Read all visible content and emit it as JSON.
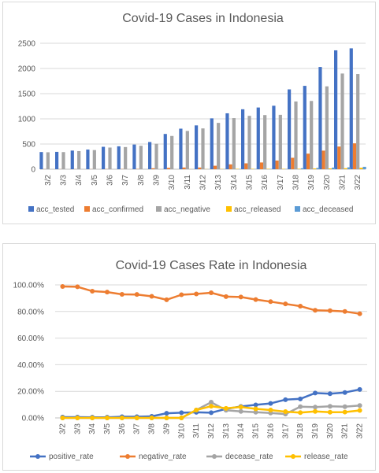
{
  "chart_data": [
    {
      "type": "bar",
      "title": "Covid-19 Cases in Indonesia",
      "xlabel": "",
      "ylabel": "",
      "ylim": [
        0,
        2500
      ],
      "yticks": [
        "0",
        "500",
        "1000",
        "1500",
        "2000",
        "2500"
      ],
      "grid": true,
      "legend_position": "bottom",
      "categories": [
        "3/2",
        "3/3",
        "3/4",
        "3/5",
        "3/6",
        "3/7",
        "3/8",
        "3/9",
        "3/10",
        "3/11",
        "3/12",
        "3/13",
        "3/14",
        "3/15",
        "3/16",
        "3/17",
        "3/18",
        "3/19",
        "3/20",
        "3/21",
        "3/22"
      ],
      "series": [
        {
          "name": "acc_tested",
          "color": "#4472c4",
          "values": [
            341,
            345,
            370,
            390,
            445,
            455,
            490,
            540,
            700,
            805,
            870,
            1010,
            1110,
            1190,
            1225,
            1260,
            1585,
            1655,
            2030,
            2360,
            2400
          ]
        },
        {
          "name": "acc_confirmed",
          "color": "#ed7d31",
          "values": [
            2,
            2,
            2,
            2,
            4,
            4,
            6,
            19,
            27,
            34,
            34,
            69,
            96,
            117,
            134,
            172,
            227,
            309,
            369,
            450,
            514
          ]
        },
        {
          "name": "acc_negative",
          "color": "#a5a5a5",
          "values": [
            337,
            340,
            360,
            380,
            430,
            440,
            465,
            505,
            660,
            760,
            810,
            920,
            1015,
            1060,
            1075,
            1080,
            1345,
            1355,
            1645,
            1900,
            1890
          ]
        },
        {
          "name": "acc_released",
          "color": "#ffc000",
          "values": [
            0,
            0,
            0,
            0,
            0,
            0,
            0,
            0,
            0,
            2,
            3,
            5,
            8,
            8,
            8,
            8,
            9,
            15,
            16,
            20,
            29
          ]
        },
        {
          "name": "acc_deceased",
          "color": "#5b9bd5",
          "values": [
            0,
            0,
            0,
            0,
            0,
            0,
            0,
            0,
            0,
            1,
            1,
            4,
            5,
            5,
            5,
            5,
            19,
            25,
            32,
            38,
            48
          ]
        }
      ]
    },
    {
      "type": "line",
      "title": "Covid-19 Cases Rate in Indonesia",
      "xlabel": "",
      "ylabel": "",
      "ylim": [
        0,
        100
      ],
      "yticks": [
        "0.00%",
        "20.00%",
        "40.00%",
        "60.00%",
        "80.00%",
        "100.00%"
      ],
      "grid": true,
      "legend_position": "bottom",
      "categories": [
        "3/2",
        "3/3",
        "3/4",
        "3/5",
        "3/6",
        "3/7",
        "3/8",
        "3/9",
        "3/10",
        "3/11",
        "3/12",
        "3/13",
        "3/14",
        "3/15",
        "3/16",
        "3/17",
        "3/18",
        "3/19",
        "3/20",
        "3/21",
        "3/22"
      ],
      "series": [
        {
          "name": "positive_rate",
          "color": "#4472c4",
          "values": [
            0.6,
            0.6,
            0.5,
            0.5,
            0.9,
            0.9,
            1.2,
            3.5,
            3.9,
            4.2,
            3.9,
            6.8,
            8.6,
            9.8,
            10.9,
            13.7,
            14.3,
            18.7,
            18.2,
            19.1,
            21.4
          ]
        },
        {
          "name": "negative_rate",
          "color": "#ed7d31",
          "values": [
            98.8,
            98.6,
            95.3,
            94.6,
            92.9,
            92.8,
            91.4,
            88.8,
            92.6,
            93.2,
            94.1,
            91.2,
            90.9,
            89.0,
            87.4,
            85.7,
            84.0,
            80.9,
            80.6,
            80.0,
            78.3
          ]
        },
        {
          "name": "decease_rate",
          "color": "#a5a5a5",
          "values": [
            0,
            0,
            0,
            0,
            0,
            0,
            0,
            0,
            0,
            5.9,
            11.8,
            5.8,
            4.9,
            4.3,
            3.7,
            2.9,
            8.4,
            8.1,
            8.7,
            8.4,
            9.3
          ]
        },
        {
          "name": "release_rate",
          "color": "#ffc000",
          "values": [
            0,
            0,
            0,
            0,
            0,
            0,
            0,
            0,
            0,
            5.9,
            8.8,
            7.2,
            8.2,
            6.8,
            5.9,
            4.7,
            4.0,
            4.9,
            4.3,
            4.4,
            5.6
          ]
        }
      ]
    }
  ]
}
